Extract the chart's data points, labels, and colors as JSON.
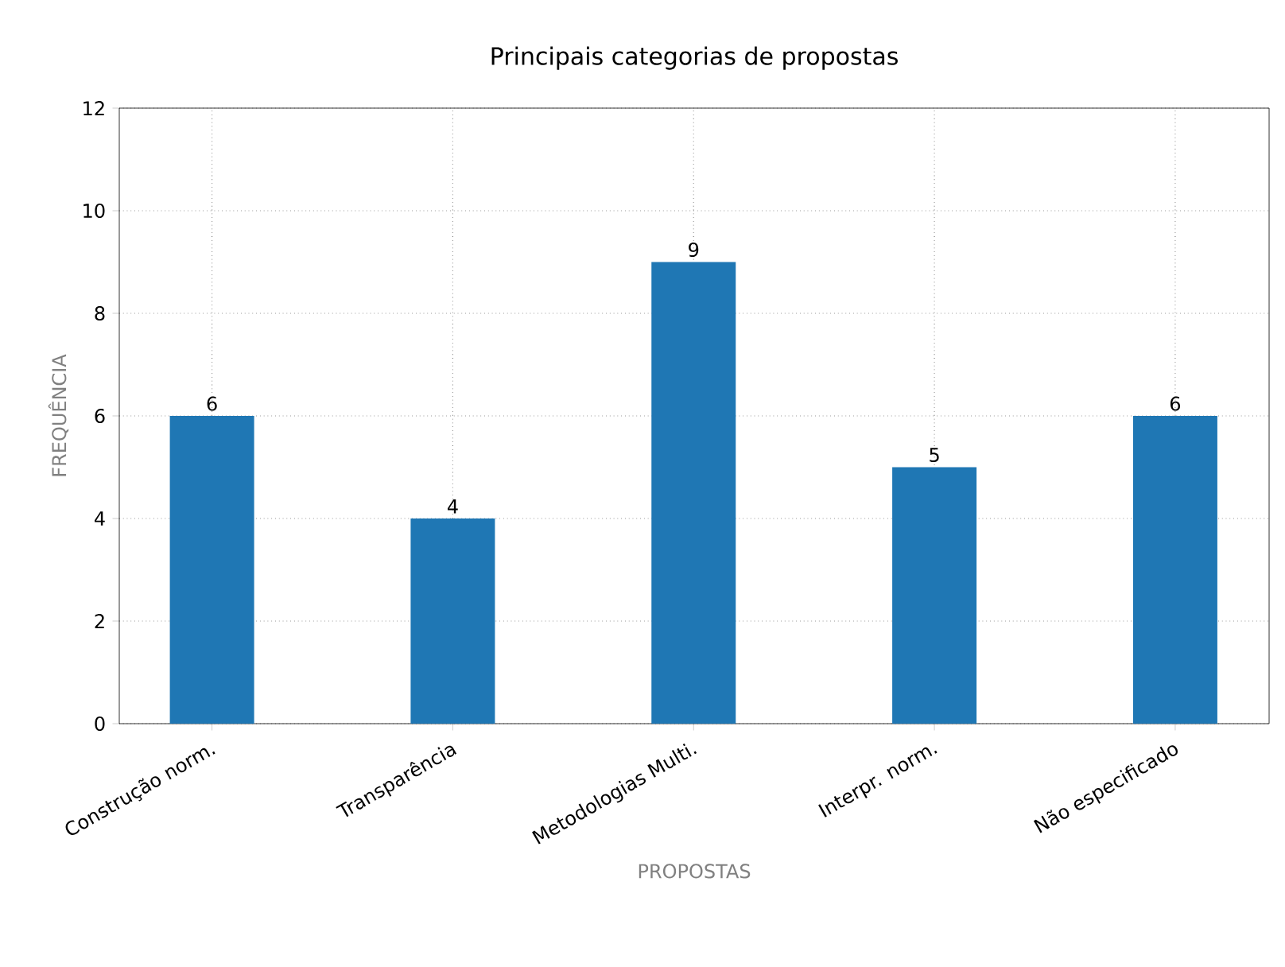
{
  "chart_data": {
    "type": "bar",
    "title": "Principais categorias de propostas",
    "xlabel": "PROPOSTAS",
    "ylabel": "FREQUÊNCIA",
    "categories": [
      "Construção norm.",
      "Transparência",
      "Metodologias Multi.",
      "Interpr. norm.",
      "Não especificado"
    ],
    "values": [
      6,
      4,
      9,
      5,
      6
    ],
    "value_labels": [
      "6",
      "4",
      "9",
      "5",
      "6"
    ],
    "color": "#1f77b4",
    "ylim": [
      0,
      12
    ],
    "yticks": [
      0,
      2,
      4,
      6,
      8,
      10,
      12
    ],
    "grid": true,
    "line_style": "dotted"
  }
}
